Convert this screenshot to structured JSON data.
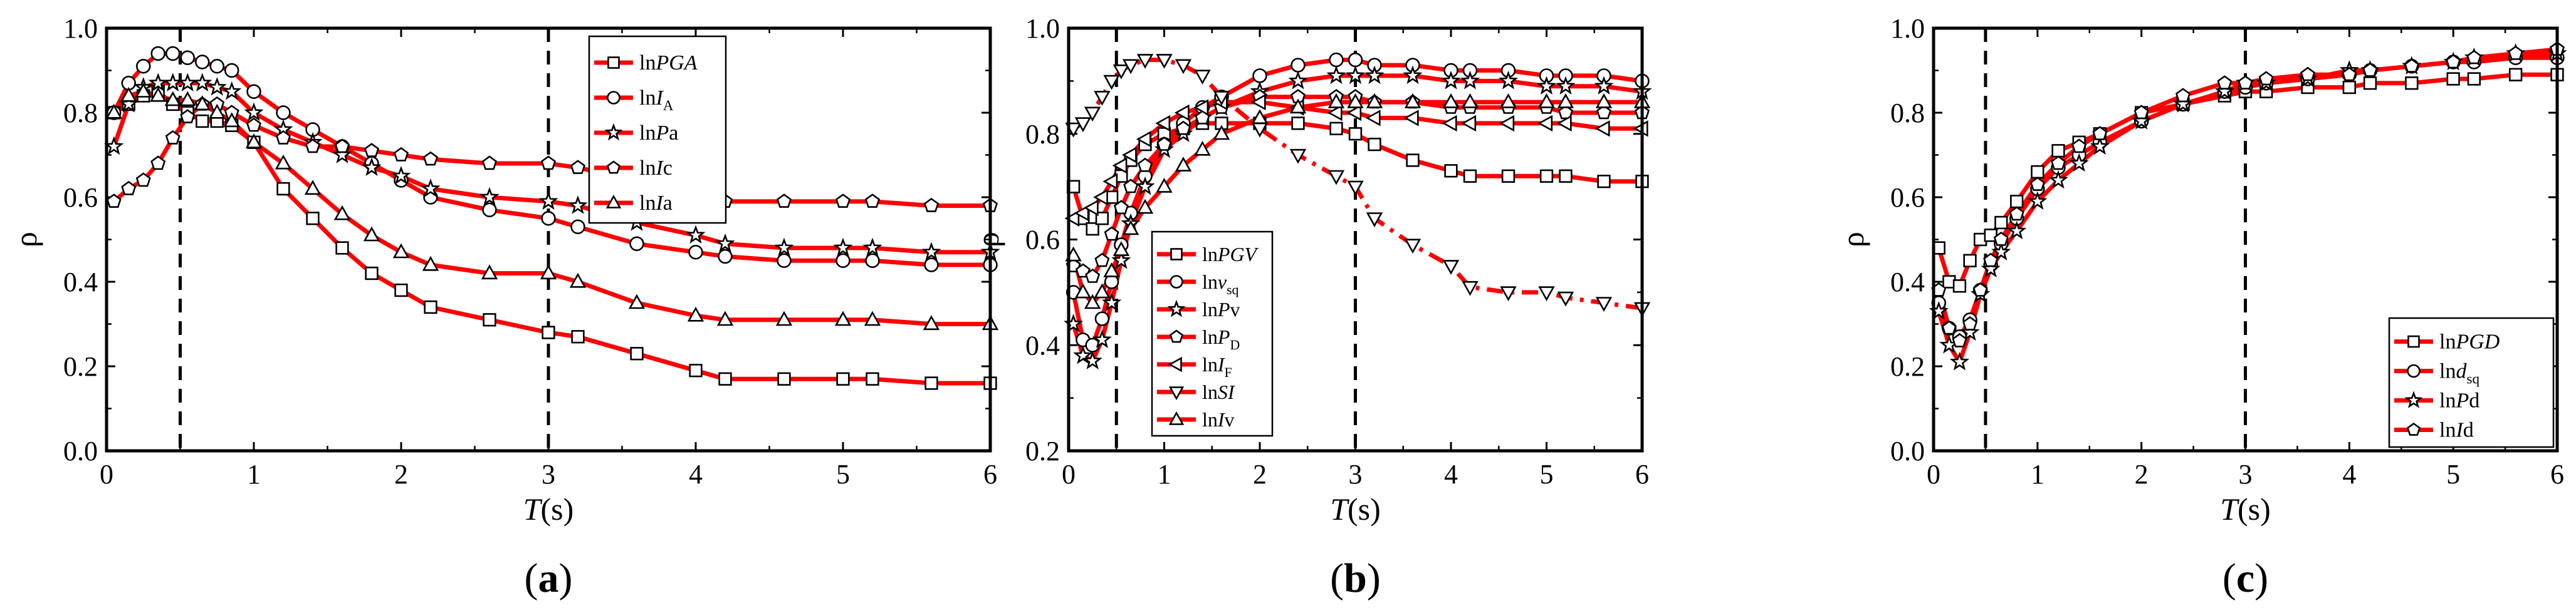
{
  "figure": {
    "background": "#ffffff",
    "line_color": "#ff0000",
    "marker_stroke": "#000000",
    "marker_fill": "#ffffff",
    "dashed_color": "#000000"
  },
  "chart_data": [
    {
      "id": "a",
      "type": "line",
      "panel_label": "(a)",
      "panel_label_letter": "a",
      "xlabel_main": "T",
      "xlabel_unit": "(s)",
      "ylabel": "ρ",
      "xlim": [
        0,
        6
      ],
      "ylim": [
        0.0,
        1.0
      ],
      "xticks": [
        0,
        1,
        2,
        3,
        4,
        5,
        6
      ],
      "xtick_labels": [
        "0",
        "1",
        "2",
        "3",
        "4",
        "5",
        "6"
      ],
      "yticks": [
        0.0,
        0.2,
        0.4,
        0.6,
        0.8,
        1.0
      ],
      "ytick_labels": [
        "0.0",
        "0.2",
        "0.4",
        "0.6",
        "0.8",
        "1.0"
      ],
      "dashed_x": [
        0.5,
        3.0
      ],
      "legend_position": "top-right",
      "x": [
        0.05,
        0.15,
        0.25,
        0.35,
        0.45,
        0.55,
        0.65,
        0.75,
        0.85,
        1.0,
        1.2,
        1.4,
        1.6,
        1.8,
        2.0,
        2.2,
        2.6,
        3.0,
        3.2,
        3.6,
        4.0,
        4.2,
        4.6,
        5.0,
        5.2,
        5.6,
        6.0
      ],
      "series": [
        {
          "name": "lnPGA",
          "legend_pre": "ln",
          "legend_main": "PGA",
          "legend_main_style": "italic",
          "legend_sub": "",
          "marker": "square",
          "values": [
            0.8,
            0.82,
            0.84,
            0.85,
            0.82,
            0.8,
            0.78,
            0.78,
            0.77,
            0.73,
            0.62,
            0.55,
            0.48,
            0.42,
            0.38,
            0.34,
            0.31,
            0.28,
            0.27,
            0.23,
            0.19,
            0.17,
            0.17,
            0.17,
            0.17,
            0.16,
            0.16
          ]
        },
        {
          "name": "lnIA",
          "legend_pre": "ln",
          "legend_main": "I",
          "legend_main_style": "italic",
          "legend_sub": "A",
          "marker": "circle",
          "values": [
            0.8,
            0.87,
            0.91,
            0.94,
            0.94,
            0.93,
            0.92,
            0.91,
            0.9,
            0.85,
            0.8,
            0.76,
            0.72,
            0.68,
            0.64,
            0.6,
            0.57,
            0.55,
            0.53,
            0.49,
            0.47,
            0.46,
            0.45,
            0.45,
            0.45,
            0.44,
            0.44
          ]
        },
        {
          "name": "lnPa",
          "legend_pre": "ln",
          "legend_main": "P",
          "legend_main_style": "italic",
          "legend_sub": "",
          "legend_suffix": "a",
          "marker": "star",
          "values": [
            0.72,
            0.82,
            0.86,
            0.87,
            0.87,
            0.87,
            0.87,
            0.86,
            0.85,
            0.8,
            0.76,
            0.73,
            0.7,
            0.67,
            0.65,
            0.62,
            0.6,
            0.59,
            0.58,
            0.54,
            0.51,
            0.49,
            0.48,
            0.48,
            0.48,
            0.47,
            0.47
          ]
        },
        {
          "name": "lnIc",
          "legend_pre": "ln",
          "legend_main": "I",
          "legend_main_style": "italic",
          "legend_sub": "",
          "legend_suffix": "c",
          "marker": "pentagon",
          "values": [
            0.59,
            0.62,
            0.64,
            0.68,
            0.74,
            0.79,
            0.82,
            0.82,
            0.8,
            0.77,
            0.74,
            0.72,
            0.72,
            0.71,
            0.7,
            0.69,
            0.68,
            0.68,
            0.67,
            0.64,
            0.61,
            0.59,
            0.59,
            0.59,
            0.59,
            0.58,
            0.58
          ]
        },
        {
          "name": "lnIa",
          "legend_pre": "ln",
          "legend_main": "I",
          "legend_main_style": "italic",
          "legend_sub": "",
          "legend_suffix": "a",
          "marker": "triangle-up",
          "values": [
            0.8,
            0.84,
            0.85,
            0.84,
            0.83,
            0.83,
            0.82,
            0.8,
            0.78,
            0.73,
            0.68,
            0.62,
            0.56,
            0.51,
            0.47,
            0.44,
            0.42,
            0.42,
            0.4,
            0.35,
            0.32,
            0.31,
            0.31,
            0.31,
            0.31,
            0.3,
            0.3
          ]
        }
      ]
    },
    {
      "id": "b",
      "type": "line",
      "panel_label": "(b)",
      "panel_label_letter": "b",
      "xlabel_main": "T",
      "xlabel_unit": "(s)",
      "ylabel": "ρ",
      "xlim": [
        0,
        6
      ],
      "ylim": [
        0.2,
        1.0
      ],
      "xticks": [
        0,
        1,
        2,
        3,
        4,
        5,
        6
      ],
      "xtick_labels": [
        "0",
        "1",
        "2",
        "3",
        "4",
        "5",
        "6"
      ],
      "yticks": [
        0.2,
        0.4,
        0.6,
        0.8,
        1.0
      ],
      "ytick_labels": [
        "0.2",
        "0.4",
        "0.6",
        "0.8",
        "1.0"
      ],
      "dashed_x": [
        0.5,
        3.0
      ],
      "legend_position": "bottom-center",
      "x": [
        0.05,
        0.15,
        0.25,
        0.35,
        0.45,
        0.55,
        0.65,
        0.8,
        1.0,
        1.2,
        1.4,
        1.6,
        2.0,
        2.4,
        2.8,
        3.0,
        3.2,
        3.6,
        4.0,
        4.2,
        4.6,
        5.0,
        5.2,
        5.6,
        6.0
      ],
      "series": [
        {
          "name": "lnPGV",
          "legend_pre": "ln",
          "legend_main": "PGV",
          "legend_main_style": "italic",
          "legend_sub": "",
          "marker": "square",
          "values": [
            0.7,
            0.64,
            0.62,
            0.64,
            0.68,
            0.72,
            0.75,
            0.78,
            0.8,
            0.81,
            0.82,
            0.82,
            0.82,
            0.82,
            0.81,
            0.8,
            0.78,
            0.75,
            0.73,
            0.72,
            0.72,
            0.72,
            0.72,
            0.71,
            0.71
          ]
        },
        {
          "name": "lnvsq",
          "legend_pre": "ln",
          "legend_main": "v",
          "legend_main_style": "italic",
          "legend_sub": "sq",
          "marker": "circle",
          "values": [
            0.5,
            0.41,
            0.4,
            0.45,
            0.52,
            0.59,
            0.65,
            0.72,
            0.78,
            0.82,
            0.85,
            0.87,
            0.91,
            0.93,
            0.94,
            0.94,
            0.93,
            0.93,
            0.92,
            0.92,
            0.92,
            0.91,
            0.91,
            0.91,
            0.9
          ]
        },
        {
          "name": "lnPv",
          "legend_pre": "ln",
          "legend_main": "P",
          "legend_main_style": "italic",
          "legend_sub": "",
          "legend_suffix": "v",
          "marker": "star",
          "values": [
            0.44,
            0.38,
            0.37,
            0.41,
            0.48,
            0.56,
            0.63,
            0.7,
            0.77,
            0.8,
            0.83,
            0.85,
            0.88,
            0.9,
            0.91,
            0.91,
            0.91,
            0.91,
            0.9,
            0.9,
            0.9,
            0.89,
            0.89,
            0.89,
            0.88
          ]
        },
        {
          "name": "lnPD",
          "legend_pre": "ln",
          "legend_main": "P",
          "legend_main_style": "italic",
          "legend_sub": "D",
          "marker": "pentagon",
          "values": [
            0.55,
            0.54,
            0.53,
            0.56,
            0.61,
            0.66,
            0.7,
            0.74,
            0.78,
            0.81,
            0.83,
            0.85,
            0.87,
            0.87,
            0.87,
            0.87,
            0.86,
            0.86,
            0.85,
            0.85,
            0.85,
            0.85,
            0.84,
            0.84,
            0.84
          ]
        },
        {
          "name": "lnIF",
          "legend_pre": "ln",
          "legend_main": "I",
          "legend_main_style": "italic",
          "legend_sub": "F",
          "marker": "triangle-left",
          "values": [
            0.64,
            0.65,
            0.66,
            0.68,
            0.71,
            0.74,
            0.76,
            0.79,
            0.82,
            0.84,
            0.85,
            0.86,
            0.86,
            0.85,
            0.84,
            0.84,
            0.83,
            0.83,
            0.82,
            0.82,
            0.82,
            0.82,
            0.82,
            0.81,
            0.81
          ]
        },
        {
          "name": "lnSI",
          "legend_pre": "ln",
          "legend_main": "SI",
          "legend_main_style": "italic",
          "legend_sub": "",
          "marker": "triangle-down",
          "values": [
            0.81,
            0.82,
            0.84,
            0.87,
            0.9,
            0.92,
            0.93,
            0.94,
            0.94,
            0.93,
            0.91,
            0.87,
            0.81,
            0.76,
            0.72,
            0.7,
            0.64,
            0.59,
            0.55,
            0.51,
            0.5,
            0.5,
            0.49,
            0.48,
            0.47
          ]
        },
        {
          "name": "lnIv",
          "legend_pre": "ln",
          "legend_main": "I",
          "legend_main_style": "italic",
          "legend_sub": "",
          "legend_suffix": "v",
          "marker": "triangle-up",
          "values": [
            0.57,
            0.5,
            0.48,
            0.5,
            0.54,
            0.58,
            0.62,
            0.66,
            0.7,
            0.74,
            0.77,
            0.8,
            0.83,
            0.85,
            0.86,
            0.86,
            0.86,
            0.86,
            0.86,
            0.86,
            0.86,
            0.86,
            0.86,
            0.86,
            0.86
          ]
        }
      ]
    },
    {
      "id": "c",
      "type": "line",
      "panel_label": "(c)",
      "panel_label_letter": "c",
      "xlabel_main": "T",
      "xlabel_unit": "(s)",
      "ylabel": "ρ",
      "xlim": [
        0,
        6
      ],
      "ylim": [
        0.0,
        1.0
      ],
      "xticks": [
        0,
        1,
        2,
        3,
        4,
        5,
        6
      ],
      "xtick_labels": [
        "0",
        "1",
        "2",
        "3",
        "4",
        "5",
        "6"
      ],
      "yticks": [
        0.0,
        0.2,
        0.4,
        0.6,
        0.8,
        1.0
      ],
      "ytick_labels": [
        "0.0",
        "0.2",
        "0.4",
        "0.6",
        "0.8",
        "1.0"
      ],
      "dashed_x": [
        0.5,
        3.0
      ],
      "legend_position": "bottom-right",
      "x": [
        0.05,
        0.15,
        0.25,
        0.35,
        0.45,
        0.55,
        0.65,
        0.8,
        1.0,
        1.2,
        1.4,
        1.6,
        2.0,
        2.4,
        2.8,
        3.0,
        3.2,
        3.6,
        4.0,
        4.2,
        4.6,
        5.0,
        5.2,
        5.6,
        6.0
      ],
      "series": [
        {
          "name": "lnPGD",
          "legend_pre": "ln",
          "legend_main": "PGD",
          "legend_main_style": "italic",
          "legend_sub": "",
          "marker": "square",
          "values": [
            0.48,
            0.4,
            0.39,
            0.45,
            0.5,
            0.51,
            0.54,
            0.59,
            0.66,
            0.71,
            0.73,
            0.75,
            0.8,
            0.82,
            0.84,
            0.85,
            0.85,
            0.86,
            0.86,
            0.87,
            0.87,
            0.88,
            0.88,
            0.89,
            0.89
          ]
        },
        {
          "name": "lndsq",
          "legend_pre": "ln",
          "legend_main": "d",
          "legend_main_style": "italic",
          "legend_sub": "sq",
          "marker": "circle",
          "values": [
            0.35,
            0.29,
            0.27,
            0.31,
            0.38,
            0.44,
            0.49,
            0.55,
            0.62,
            0.67,
            0.7,
            0.73,
            0.78,
            0.82,
            0.85,
            0.86,
            0.87,
            0.88,
            0.89,
            0.9,
            0.91,
            0.92,
            0.92,
            0.93,
            0.93
          ]
        },
        {
          "name": "lnPd",
          "legend_pre": "ln",
          "legend_main": "P",
          "legend_main_style": "italic",
          "legend_sub": "",
          "legend_suffix": "d",
          "marker": "star",
          "values": [
            0.33,
            0.25,
            0.21,
            0.28,
            0.37,
            0.43,
            0.47,
            0.52,
            0.59,
            0.64,
            0.68,
            0.72,
            0.78,
            0.82,
            0.85,
            0.87,
            0.87,
            0.88,
            0.9,
            0.9,
            0.91,
            0.92,
            0.93,
            0.94,
            0.94
          ]
        },
        {
          "name": "lnId",
          "legend_pre": "ln",
          "legend_main": "I",
          "legend_main_style": "italic",
          "legend_sub": "",
          "legend_suffix": "d",
          "marker": "pentagon",
          "values": [
            0.38,
            0.29,
            0.26,
            0.3,
            0.38,
            0.45,
            0.5,
            0.56,
            0.63,
            0.68,
            0.72,
            0.75,
            0.8,
            0.84,
            0.87,
            0.87,
            0.88,
            0.89,
            0.89,
            0.9,
            0.91,
            0.92,
            0.93,
            0.94,
            0.95
          ]
        }
      ]
    }
  ]
}
